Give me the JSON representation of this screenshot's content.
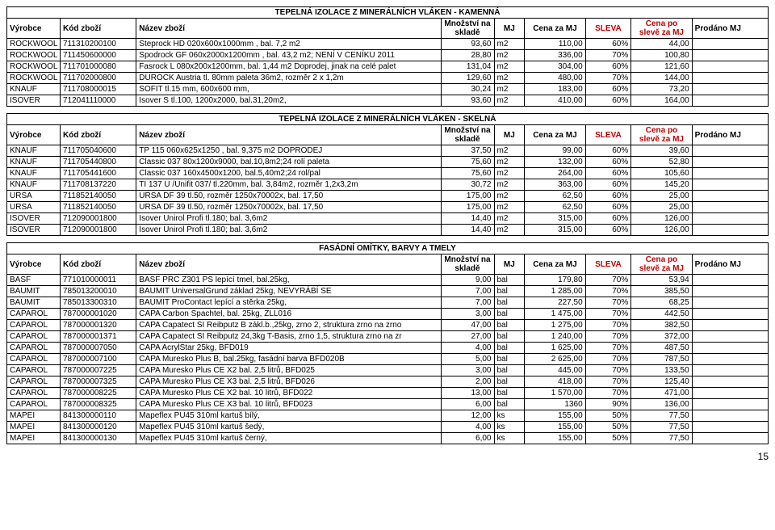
{
  "columns": [
    "Výrobce",
    "Kód zboží",
    "Název zboží",
    "Množství na skladě",
    "MJ",
    "Cena za MJ",
    "SLEVA",
    "Cena po slevě za MJ",
    "Prodáno MJ"
  ],
  "sections": [
    {
      "title": "TEPELNÁ IZOLACE Z MINERÁLNÍCH VLÁKEN - KAMENNÁ",
      "rows": [
        [
          "ROCKWOOL",
          "711310200100",
          "Steprock HD 020x600x1000mm , bal. 7,2 m2",
          "93,60",
          "m2",
          "110,00",
          "60%",
          "44,00",
          ""
        ],
        [
          "ROCKWOOL",
          "711450600000",
          "Spodrock GF 060x2000x1200mm , bal. 43,2 m2; NENÍ V CENÍKU 2011",
          "28,80",
          "m2",
          "336,00",
          "70%",
          "100,80",
          ""
        ],
        [
          "ROCKWOOL",
          "711701000080",
          "Fasrock L 080x200x1200mm, bal. 1,44 m2     Doprodej, jinak na celé palet",
          "131,04",
          "m2",
          "304,00",
          "60%",
          "121,60",
          ""
        ],
        [
          "ROCKWOOL",
          "711702000800",
          "DUROCK Austria tl. 80mm paleta 36m2, rozměr 2 x 1,2m",
          "129,60",
          "m2",
          "480,00",
          "70%",
          "144,00",
          ""
        ],
        [
          "KNAUF",
          "711708000015",
          "SOFIT tl.15 mm, 600x600 mm,",
          "30,24",
          "m2",
          "183,00",
          "60%",
          "73,20",
          ""
        ],
        [
          "ISOVER",
          "712041110000",
          "Isover S tl.100, 1200x2000, bal.31,20m2,",
          "93,60",
          "m2",
          "410,00",
          "60%",
          "164,00",
          ""
        ]
      ]
    },
    {
      "title": "TEPELNÁ IZOLACE Z MINERÁLNÍCH VLÁKEN - SKELNÁ",
      "rows": [
        [
          "KNAUF",
          "711705040600",
          "TP 115 060x625x1250 , bal. 9,375 m2  DOPRODEJ",
          "37,50",
          "m2",
          "99,00",
          "60%",
          "39,60",
          ""
        ],
        [
          "KNAUF",
          "711705440800",
          "Classic 037 80x1200x9000, bal.10,8m2;24 rolí paleta",
          "75,60",
          "m2",
          "132,00",
          "60%",
          "52,80",
          ""
        ],
        [
          "KNAUF",
          "711705441600",
          "Classic 037 160x4500x1200, bal.5,40m2;24 rol/pal",
          "75,60",
          "m2",
          "264,00",
          "60%",
          "105,60",
          ""
        ],
        [
          "KNAUF",
          "711708137220",
          "TI 137 U /Unifit 037/ tl.220mm, bal. 3,84m2, rozměr 1,2x3,2m",
          "30,72",
          "m2",
          "363,00",
          "60%",
          "145,20",
          ""
        ],
        [
          "URSA",
          "711852140050",
          "URSA DF 39 tl.50, rozměr 1250x70002x, bal. 17,50",
          "175,00",
          "m2",
          "62,50",
          "60%",
          "25,00",
          ""
        ],
        [
          "URSA",
          "711852140050",
          "URSA DF 39 tl.50, rozměr 1250x70002x, bal. 17,50",
          "175,00",
          "m2",
          "62,50",
          "60%",
          "25,00",
          ""
        ],
        [
          "ISOVER",
          "712090001800",
          "Isover Unirol Profi tl.180; bal. 3,6m2",
          "14,40",
          "m2",
          "315,00",
          "60%",
          "126,00",
          ""
        ],
        [
          "ISOVER",
          "712090001800",
          "Isover Unirol Profi tl.180; bal. 3,6m2",
          "14,40",
          "m2",
          "315,00",
          "60%",
          "126,00",
          ""
        ]
      ]
    },
    {
      "title": "FASÁDNÍ OMÍTKY, BARVY A TMELY",
      "rows": [
        [
          "BASF",
          "771010000011",
          "BASF PRC Z301 PS lepící tmel, bal.25kg,",
          "9,00",
          "bal",
          "179,80",
          "70%",
          "53,94",
          ""
        ],
        [
          "BAUMIT",
          "785013200010",
          "BAUMIT UniversalGrund základ 25kg, NEVYRÁBÍ SE",
          "7,00",
          "bal",
          "1 285,00",
          "70%",
          "385,50",
          ""
        ],
        [
          "BAUMIT",
          "785013300310",
          "BAUMIT ProContact lepící a stěrka 25kg,",
          "7,00",
          "bal",
          "227,50",
          "70%",
          "68,25",
          ""
        ],
        [
          "CAPAROL",
          "787000001020",
          "CAPA Carbon Spachtel, bal. 25kg, ZLL016",
          "3,00",
          "bal",
          "1 475,00",
          "70%",
          "442,50",
          ""
        ],
        [
          "CAPAROL",
          "787000001320",
          "CAPA Capatect SI Reibputz B zákl.b.,25kg, zrno 2, struktura zrno na zrno",
          "47,00",
          "bal",
          "1 275,00",
          "70%",
          "382,50",
          ""
        ],
        [
          "CAPAROL",
          "787000001371",
          "CAPA Capatect SI Reibputz 24,3kg T-Basis, zrno 1,5, struktura zrno na zr",
          "27,00",
          "bal",
          "1 240,00",
          "70%",
          "372,00",
          ""
        ],
        [
          "CAPAROL",
          "787000007050",
          "CAPA AcrylStar 25kg, BFD019",
          "4,00",
          "bal",
          "1 625,00",
          "70%",
          "487,50",
          ""
        ],
        [
          "CAPAROL",
          "787000007100",
          "CAPA Muresko Plus B, bal.25kg, fasádní barva  BFD020B",
          "5,00",
          "bal",
          "2 625,00",
          "70%",
          "787,50",
          ""
        ],
        [
          "CAPAROL",
          "787000007225",
          "CAPA Muresko Plus CE X2 bal. 2,5 litrů, BFD025",
          "3,00",
          "bal",
          "445,00",
          "70%",
          "133,50",
          ""
        ],
        [
          "CAPAROL",
          "787000007325",
          "CAPA Muresko Plus CE X3 bal. 2,5 litrů, BFD026",
          "2,00",
          "bal",
          "418,00",
          "70%",
          "125,40",
          ""
        ],
        [
          "CAPAROL",
          "787000008225",
          "CAPA Muresko Plus CE X2 bal. 10 litrů, BFD022",
          "13,00",
          "bal",
          "1 570,00",
          "70%",
          "471,00",
          ""
        ],
        [
          "CAPAROL",
          "787000008325",
          "CAPA Muresko Plus CE X3 bal. 10 litrů, BFD023",
          "6,00",
          "bal",
          "1360",
          "90%",
          "136,00",
          ""
        ],
        [
          "MAPEI",
          "841300000110",
          "Mapeflex PU45 310ml kartuš bílý,",
          "12,00",
          "ks",
          "155,00",
          "50%",
          "77,50",
          ""
        ],
        [
          "MAPEI",
          "841300000120",
          "Mapeflex PU45 310ml kartuš šedý,",
          "4,00",
          "ks",
          "155,00",
          "50%",
          "77,50",
          ""
        ],
        [
          "MAPEI",
          "841300000130",
          "Mapeflex PU45 310ml kartuš černý,",
          "6,00",
          "ks",
          "155,00",
          "50%",
          "77,50",
          ""
        ]
      ]
    }
  ],
  "pageNumber": "15",
  "colors": {
    "red": "#c00000"
  }
}
